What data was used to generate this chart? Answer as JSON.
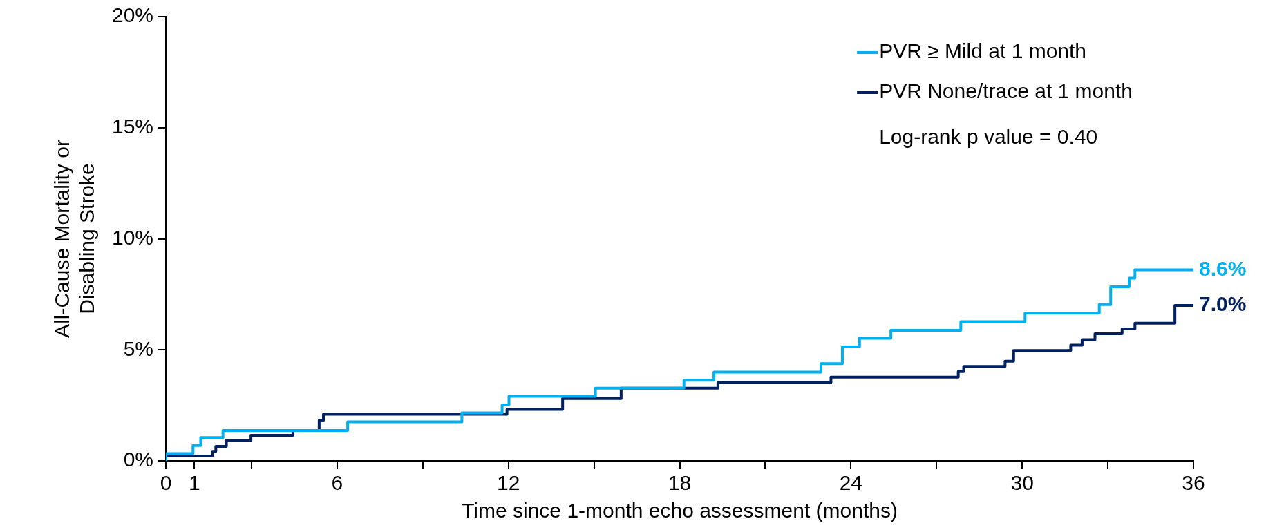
{
  "chart_data": {
    "type": "step",
    "xlabel": "Time since 1-month echo assessment (months)",
    "ylabel": "All-Cause Mortality or\nDisabling Stroke",
    "xlim": [
      0,
      36
    ],
    "xticks": [
      0,
      1,
      {
        "value": 3,
        "label": null
      },
      6,
      {
        "value": 9,
        "label": null
      },
      12,
      {
        "value": 15,
        "label": null
      },
      18,
      {
        "value": 21,
        "label": null
      },
      24,
      {
        "value": 27,
        "label": null
      },
      30,
      {
        "value": 33,
        "label": null
      },
      36
    ],
    "ylim": [
      0,
      20
    ],
    "yticks": [
      {
        "value": 0,
        "label": "0%"
      },
      {
        "value": 5,
        "label": "5%"
      },
      {
        "value": 10,
        "label": "10%"
      },
      {
        "value": 15,
        "label": "15%"
      },
      {
        "value": 20,
        "label": "20%"
      }
    ],
    "grid": false,
    "legend": "top right",
    "line_style": "solid",
    "marker": "none",
    "series": [
      {
        "name": "PVR ≥ Mild at 1 month",
        "color": "#00b0f0",
        "x": [
          0,
          0.95,
          1.22,
          2.0,
          6.37,
          10.37,
          11.78,
          12.02,
          15.05,
          18.15,
          19.2,
          22.95,
          23.7,
          24.3,
          25.4,
          27.85,
          30.1,
          32.7,
          33.1,
          33.75,
          33.95,
          35.65,
          36
        ],
        "values": [
          0,
          0.33,
          0.69,
          1.05,
          1.37,
          1.76,
          2.16,
          2.52,
          2.91,
          3.27,
          3.63,
          4.0,
          4.38,
          5.13,
          5.52,
          5.88,
          6.27,
          6.66,
          7.04,
          7.84,
          8.23,
          8.6,
          8.6
        ]
      },
      {
        "name": "PVR None/trace at 1 month",
        "color": "#002060",
        "x": [
          0,
          1.63,
          1.75,
          2.12,
          2.98,
          4.45,
          5.37,
          5.52,
          11.95,
          13.9,
          15.95,
          19.34,
          23.3,
          27.76,
          27.95,
          29.4,
          29.7,
          31.7,
          32.1,
          32.55,
          33.5,
          33.95,
          35.35,
          35.9,
          36
        ],
        "values": [
          0,
          0.22,
          0.43,
          0.65,
          0.91,
          1.15,
          1.37,
          1.83,
          2.1,
          2.32,
          2.81,
          3.27,
          3.53,
          3.77,
          4.02,
          4.25,
          4.49,
          4.97,
          5.21,
          5.46,
          5.72,
          5.94,
          6.2,
          7.0,
          7.0
        ]
      }
    ],
    "annotations": [
      "Log-rank p value = 0.40",
      {
        "text": "8.6%",
        "x": 36,
        "y": 8.6
      },
      {
        "text": "7.0%",
        "x": 36,
        "y": 7.0
      }
    ]
  }
}
